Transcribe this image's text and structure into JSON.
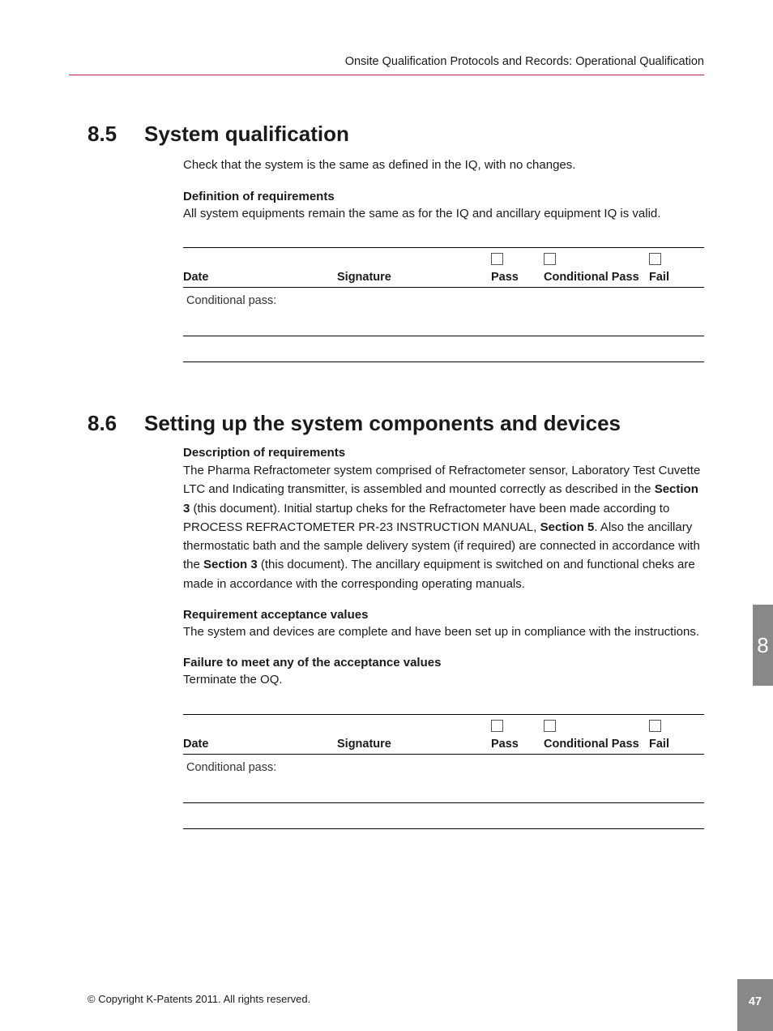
{
  "header": {
    "breadcrumb": "Onsite Qualification Protocols and Records: Operational Qualification",
    "rule_color": "#c4234e"
  },
  "sections": [
    {
      "num": "8.5",
      "title": "System qualification",
      "intro": "Check that the system is the same as defined in the IQ, with no changes.",
      "blocks": [
        {
          "head": "Definition of requirements",
          "text": "All system equipments remain the same as for the IQ and ancillary equipment IQ is valid."
        }
      ]
    },
    {
      "num": "8.6",
      "title": "Setting up the system components and devices",
      "blocks": [
        {
          "head": "Description of requirements",
          "html_key": "desc86"
        },
        {
          "head": "Requirement acceptance values",
          "text": "The system and devices are complete and have been set up in compliance with the instructions."
        },
        {
          "head": "Failure to meet any of the acceptance values",
          "text": "Terminate the OQ."
        }
      ]
    }
  ],
  "desc86_parts": {
    "p1": "The Pharma Refractometer system comprised of Refractometer sensor, Laboratory Test Cuvette LTC and Indicating transmitter, is assembled and mounted correctly as described in the ",
    "b1": "Section 3",
    "p2": " (this document). Initial startup cheks for the Refractometer have been made according to PROCESS REFRACTOMETER PR-23 INSTRUCTION MANUAL, ",
    "b2": "Section 5",
    "p3": ". Also the ancillary thermostatic bath and the sample delivery system (if required) are connected in accordance with the ",
    "b3": "Section 3",
    "p4": " (this document). The ancillary equipment is switched on and functional cheks are made in accordance with the corresponding operating manuals."
  },
  "sig_labels": {
    "date": "Date",
    "signature": "Signature",
    "pass": "Pass",
    "conditional": "Conditional Pass",
    "fail": "Fail",
    "cond_pass_row": "Conditional pass:"
  },
  "side_tab": "8",
  "page_number": "47",
  "copyright": "© Copyright K-Patents 2011. All rights reserved."
}
